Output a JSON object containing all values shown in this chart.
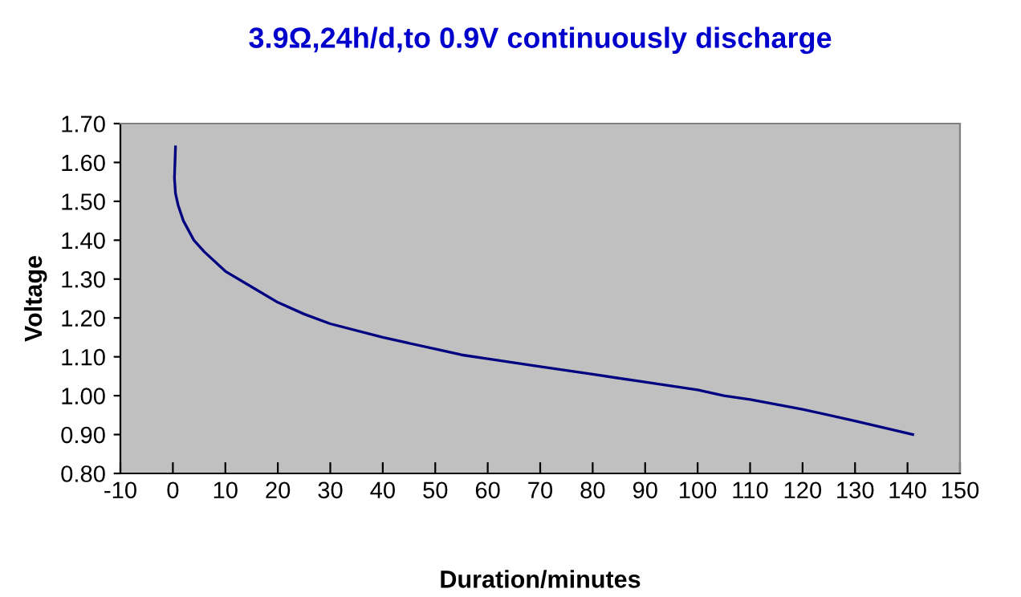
{
  "chart_data": {
    "type": "line",
    "title": "3.9Ω,24h/d,to 0.9V continuously discharge",
    "xlabel": "Duration/minutes",
    "ylabel": "Voltage",
    "series": [
      {
        "color": "#000080",
        "x": [
          0.5,
          0.3,
          0.5,
          1,
          2,
          4,
          6,
          10,
          15,
          20,
          25,
          30,
          40,
          50,
          55,
          60,
          70,
          80,
          90,
          100,
          105,
          110,
          120,
          130,
          141
        ],
        "values": [
          1.64,
          1.56,
          1.52,
          1.49,
          1.45,
          1.4,
          1.37,
          1.32,
          1.28,
          1.24,
          1.21,
          1.185,
          1.15,
          1.12,
          1.105,
          1.095,
          1.075,
          1.055,
          1.035,
          1.015,
          1.0,
          0.99,
          0.965,
          0.935,
          0.9
        ]
      }
    ],
    "xlim": [
      -10,
      150
    ],
    "xticks": [
      -10,
      0,
      10,
      20,
      30,
      40,
      50,
      60,
      70,
      80,
      90,
      100,
      110,
      120,
      130,
      140,
      150
    ],
    "ylim": [
      0.8,
      1.7
    ],
    "yticks": [
      {
        "value": 0.8,
        "label": "0.80"
      },
      {
        "value": 0.9,
        "label": "0.90"
      },
      {
        "value": 1.0,
        "label": "1.00"
      },
      {
        "value": 1.1,
        "label": "1.10"
      },
      {
        "value": 1.2,
        "label": "1.20"
      },
      {
        "value": 1.3,
        "label": "1.30"
      },
      {
        "value": 1.4,
        "label": "1.40"
      },
      {
        "value": 1.5,
        "label": "1.50"
      },
      {
        "value": 1.6,
        "label": "1.60"
      },
      {
        "value": 1.7,
        "label": "1.70"
      }
    ],
    "grid": false,
    "marker": "none",
    "line_style": "solid",
    "legend": false
  }
}
